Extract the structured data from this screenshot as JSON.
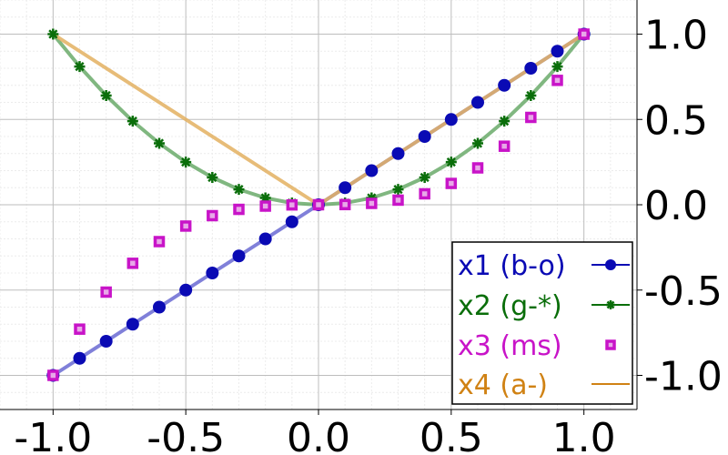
{
  "chart_data": {
    "type": "line",
    "xlim": [
      -1.2,
      1.2
    ],
    "ylim": [
      -1.2,
      1.2
    ],
    "grid": true,
    "minor_grid": true,
    "y_axis_side": "right",
    "legend_position": "bottom-right",
    "x_ticks": [
      {
        "value": -1.0,
        "label": "-1.0"
      },
      {
        "value": -0.5,
        "label": "-0.5"
      },
      {
        "value": 0.0,
        "label": "0.0"
      },
      {
        "value": 0.5,
        "label": "0.5"
      },
      {
        "value": 1.0,
        "label": "1.0"
      }
    ],
    "y_ticks": [
      {
        "value": 1.0,
        "label": "1.0"
      },
      {
        "value": 0.5,
        "label": "0.5"
      },
      {
        "value": 0.0,
        "label": "0.0"
      },
      {
        "value": -0.5,
        "label": "-0.5"
      },
      {
        "value": -1.0,
        "label": "-1.0"
      }
    ],
    "x": [
      -1.0,
      -0.9,
      -0.8,
      -0.7,
      -0.6,
      -0.5,
      -0.4,
      -0.3,
      -0.2,
      -0.1,
      0.0,
      0.1,
      0.2,
      0.3,
      0.4,
      0.5,
      0.6,
      0.7,
      0.8,
      0.9,
      1.0
    ],
    "series": [
      {
        "name": "x1 (b-o)",
        "color": "#0a0ab4",
        "line_color": "#6a6ad2",
        "marker": "circle",
        "line": true,
        "values": [
          -1.0,
          -0.9,
          -0.8,
          -0.7,
          -0.6,
          -0.5,
          -0.4,
          -0.3,
          -0.2,
          -0.1,
          0.0,
          0.1,
          0.2,
          0.3,
          0.4,
          0.5,
          0.6,
          0.7,
          0.8,
          0.9,
          1.0
        ]
      },
      {
        "name": "x2 (g-*)",
        "color": "#0a6e0a",
        "line_color": "#6aaa6a",
        "marker": "star",
        "line": true,
        "values": [
          1.0,
          0.81,
          0.64,
          0.49,
          0.36,
          0.25,
          0.16,
          0.09,
          0.04,
          0.01,
          0.0,
          0.01,
          0.04,
          0.09,
          0.16,
          0.25,
          0.36,
          0.49,
          0.64,
          0.81,
          1.0
        ]
      },
      {
        "name": "x3 (ms)",
        "color": "#c814c8",
        "line_color": "#c814c8",
        "marker": "square",
        "line": false,
        "values": [
          -1.0,
          -0.729,
          -0.512,
          -0.343,
          -0.216,
          -0.125,
          -0.064,
          -0.027,
          -0.008,
          -0.001,
          0.0,
          0.001,
          0.008,
          0.027,
          0.064,
          0.125,
          0.216,
          0.343,
          0.512,
          0.729,
          1.0
        ]
      },
      {
        "name": "x4 (a-)",
        "color": "#d08214",
        "line_color": "#e3b060",
        "marker": "none",
        "line": true,
        "values": [
          1.0,
          0.9,
          0.8,
          0.7,
          0.6,
          0.5,
          0.4,
          0.3,
          0.2,
          0.1,
          0.0,
          0.1,
          0.2,
          0.3,
          0.4,
          0.5,
          0.6,
          0.7,
          0.8,
          0.9,
          1.0
        ]
      }
    ]
  }
}
